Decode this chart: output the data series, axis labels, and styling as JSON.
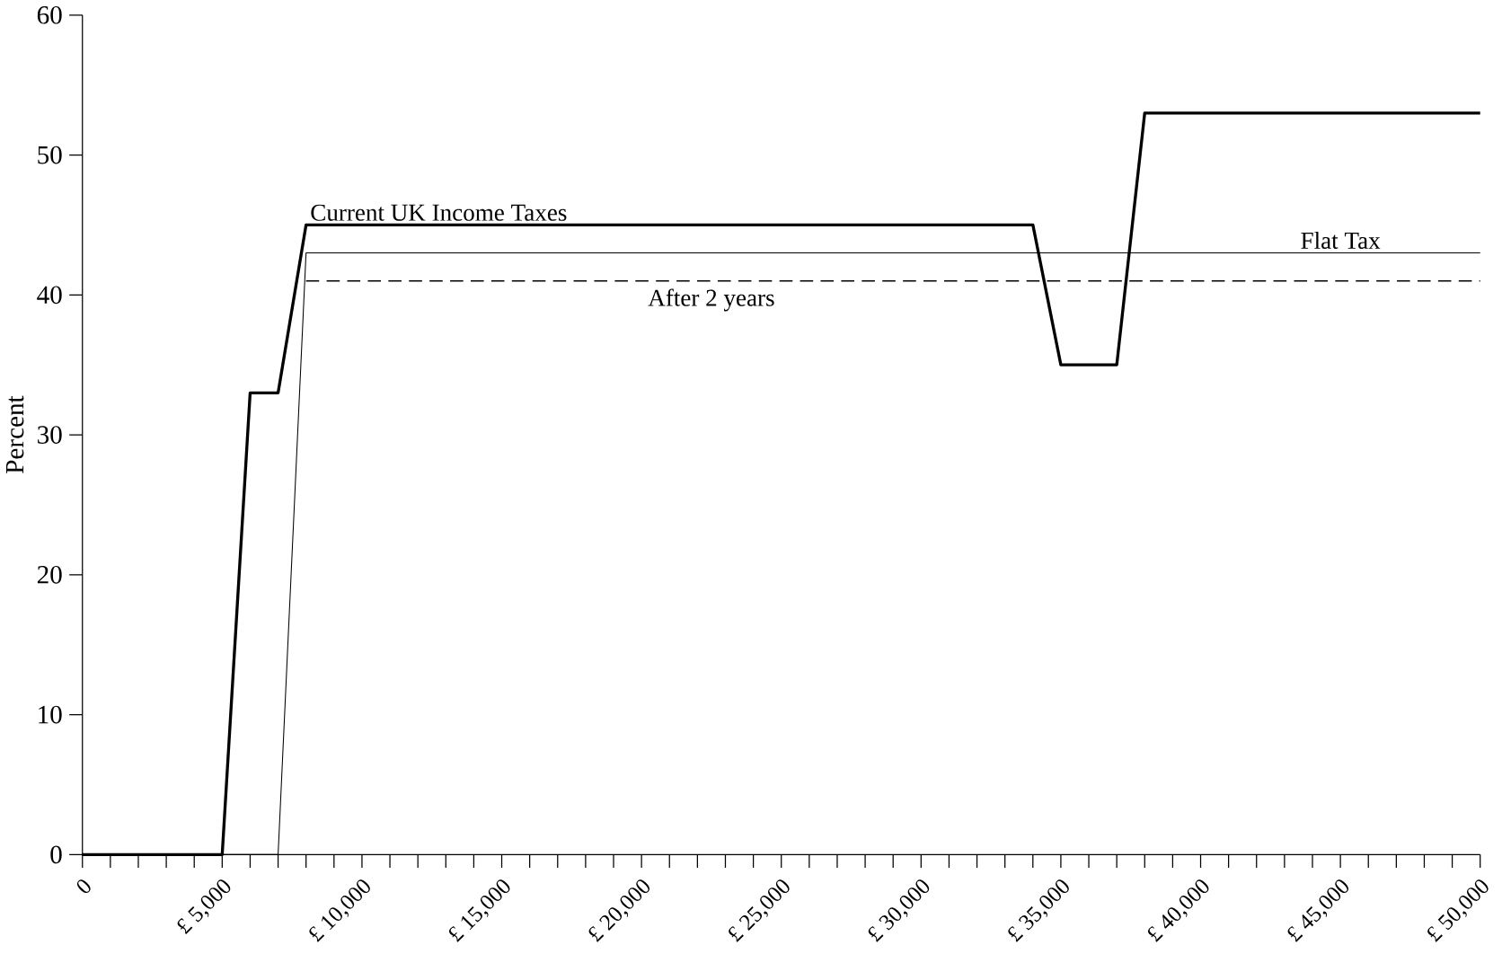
{
  "chart_data": {
    "type": "line",
    "ylabel": "Percent",
    "xlim": [
      0,
      50000
    ],
    "ylim": [
      0,
      60
    ],
    "xticks": [
      {
        "value": 0,
        "label": "0"
      },
      {
        "value": 1000,
        "label": null
      },
      {
        "value": 2000,
        "label": null
      },
      {
        "value": 3000,
        "label": null
      },
      {
        "value": 4000,
        "label": null
      },
      {
        "value": 5000,
        "label": "£ 5,000"
      },
      {
        "value": 6000,
        "label": null
      },
      {
        "value": 7000,
        "label": null
      },
      {
        "value": 8000,
        "label": null
      },
      {
        "value": 9000,
        "label": null
      },
      {
        "value": 10000,
        "label": "£ 10,000"
      },
      {
        "value": 11000,
        "label": null
      },
      {
        "value": 12000,
        "label": null
      },
      {
        "value": 13000,
        "label": null
      },
      {
        "value": 14000,
        "label": null
      },
      {
        "value": 15000,
        "label": "£ 15,000"
      },
      {
        "value": 16000,
        "label": null
      },
      {
        "value": 17000,
        "label": null
      },
      {
        "value": 18000,
        "label": null
      },
      {
        "value": 19000,
        "label": null
      },
      {
        "value": 20000,
        "label": "£ 20,000"
      },
      {
        "value": 21000,
        "label": null
      },
      {
        "value": 22000,
        "label": null
      },
      {
        "value": 23000,
        "label": null
      },
      {
        "value": 24000,
        "label": null
      },
      {
        "value": 25000,
        "label": "£ 25,000"
      },
      {
        "value": 26000,
        "label": null
      },
      {
        "value": 27000,
        "label": null
      },
      {
        "value": 28000,
        "label": null
      },
      {
        "value": 29000,
        "label": null
      },
      {
        "value": 30000,
        "label": "£ 30,000"
      },
      {
        "value": 31000,
        "label": null
      },
      {
        "value": 32000,
        "label": null
      },
      {
        "value": 33000,
        "label": null
      },
      {
        "value": 34000,
        "label": null
      },
      {
        "value": 35000,
        "label": "£ 35,000"
      },
      {
        "value": 36000,
        "label": null
      },
      {
        "value": 37000,
        "label": null
      },
      {
        "value": 38000,
        "label": null
      },
      {
        "value": 39000,
        "label": null
      },
      {
        "value": 40000,
        "label": "£ 40,000"
      },
      {
        "value": 41000,
        "label": null
      },
      {
        "value": 42000,
        "label": null
      },
      {
        "value": 43000,
        "label": null
      },
      {
        "value": 44000,
        "label": null
      },
      {
        "value": 45000,
        "label": "£ 45,000"
      },
      {
        "value": 46000,
        "label": null
      },
      {
        "value": 47000,
        "label": null
      },
      {
        "value": 48000,
        "label": null
      },
      {
        "value": 49000,
        "label": null
      },
      {
        "value": 50000,
        "label": "£ 50,000"
      }
    ],
    "yticks": [
      0,
      10,
      20,
      30,
      40,
      50,
      60
    ],
    "grid": false,
    "marker": "none",
    "series": [
      {
        "name": "Current UK Income Taxes",
        "color": "#000000",
        "line_style": "solid",
        "x": [
          0,
          5000,
          6000,
          7000,
          8000,
          34000,
          35000,
          37000,
          38000,
          50000
        ],
        "values": [
          0,
          0,
          33,
          33,
          45,
          45,
          35,
          35,
          53,
          53
        ]
      },
      {
        "name": "Flat Tax",
        "color": "#000000",
        "line_style": "solid",
        "x": [
          0,
          7000,
          8000,
          50000
        ],
        "values": [
          0,
          0,
          43,
          43
        ]
      },
      {
        "name": "After 2 years",
        "color": "#000000",
        "line_style": "dashed",
        "x": [
          8000,
          50000
        ],
        "values": [
          41,
          41
        ]
      }
    ]
  }
}
